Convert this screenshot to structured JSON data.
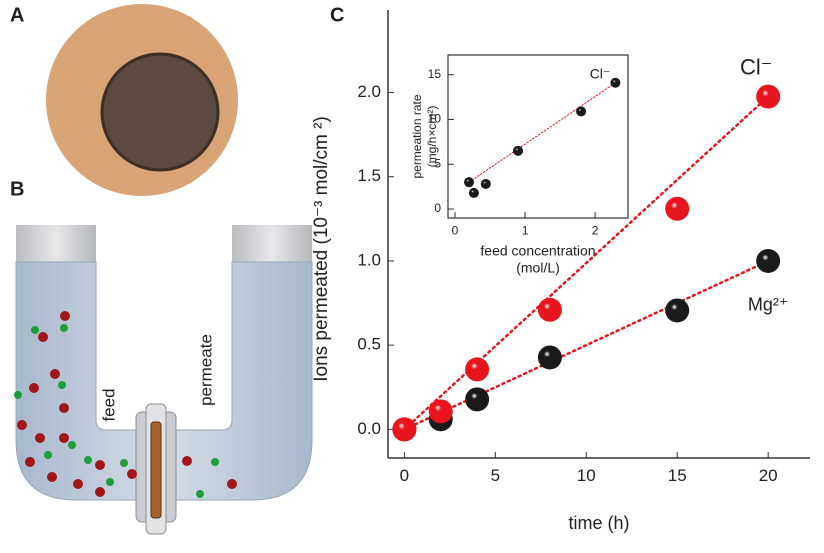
{
  "panels": {
    "a": "A",
    "b": "B",
    "c": "C"
  },
  "illustration": {
    "feed": "feed",
    "permeate": "permeate"
  },
  "chart_data": [
    {
      "type": "scatter",
      "xlabel": "time (h)",
      "ylabel": "Ions permeated  (10⁻³ mol/cm ²)",
      "x": [
        0,
        2,
        4,
        8,
        15,
        20
      ],
      "series": [
        {
          "name": "Cl⁻",
          "color": "#e8141e",
          "values": [
            0,
            0.107,
            0.356,
            0.71,
            1.31,
            1.976
          ]
        },
        {
          "name": "Mg²⁺",
          "color": "#1a1a1a",
          "values": [
            0,
            0.06,
            0.178,
            0.427,
            0.706,
            1.0
          ]
        }
      ],
      "xlim": [
        -0.9,
        22.3
      ],
      "ylim": [
        -0.17,
        2.49
      ],
      "xticks": [
        0,
        5,
        10,
        15,
        20
      ],
      "yticks": [
        {
          "value": 0,
          "label": "0.0"
        },
        0.5,
        {
          "value": 1,
          "label": "1.0"
        },
        1.5,
        {
          "value": 2,
          "label": "2.0"
        }
      ],
      "trendline": true
    },
    {
      "type": "scatter",
      "xlabel": [
        "feed concentration",
        "(mol/L)"
      ],
      "ylabel": [
        "permeation rate",
        "(mg/h×cm²)"
      ],
      "annotation": "Cl⁻",
      "x": [
        0.2,
        0.27,
        0.44,
        0.9,
        1.8,
        2.29
      ],
      "series": [
        {
          "color": "#1a1a1a",
          "values": [
            3.0,
            1.8,
            2.8,
            6.5,
            10.9,
            14.1
          ]
        }
      ],
      "xlim": [
        -0.1,
        2.47
      ],
      "ylim": [
        -1.0,
        17.2
      ],
      "xticks": [
        0,
        1,
        2
      ],
      "yticks": [
        0,
        5,
        10,
        15
      ],
      "trendline": true
    }
  ]
}
